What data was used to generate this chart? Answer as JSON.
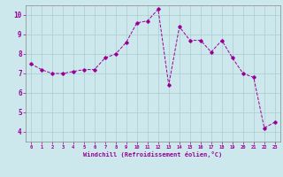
{
  "x": [
    0,
    1,
    2,
    3,
    4,
    5,
    6,
    7,
    8,
    9,
    10,
    11,
    12,
    13,
    14,
    15,
    16,
    17,
    18,
    19,
    20,
    21,
    22,
    23
  ],
  "y": [
    7.5,
    7.2,
    7.0,
    7.0,
    7.1,
    7.2,
    7.2,
    7.8,
    8.0,
    8.6,
    9.6,
    9.7,
    10.3,
    6.4,
    9.4,
    8.7,
    8.7,
    8.1,
    8.7,
    7.8,
    7.0,
    6.8,
    4.2,
    4.5
  ],
  "line_color": "#990099",
  "marker": "D",
  "marker_size": 1.8,
  "bg_color": "#cce8ec",
  "grid_color": "#aacccc",
  "xlabel": "Windchill (Refroidissement éolien,°C)",
  "tick_color": "#990099",
  "xlim": [
    -0.5,
    23.5
  ],
  "ylim": [
    3.5,
    10.5
  ],
  "yticks": [
    4,
    5,
    6,
    7,
    8,
    9,
    10
  ],
  "xticks": [
    0,
    1,
    2,
    3,
    4,
    5,
    6,
    7,
    8,
    9,
    10,
    11,
    12,
    13,
    14,
    15,
    16,
    17,
    18,
    19,
    20,
    21,
    22,
    23
  ],
  "xtick_labels": [
    "0",
    "1",
    "2",
    "3",
    "4",
    "5",
    "6",
    "7",
    "8",
    "9",
    "10",
    "11",
    "12",
    "13",
    "14",
    "15",
    "16",
    "17",
    "18",
    "19",
    "20",
    "21",
    "22",
    "23"
  ]
}
